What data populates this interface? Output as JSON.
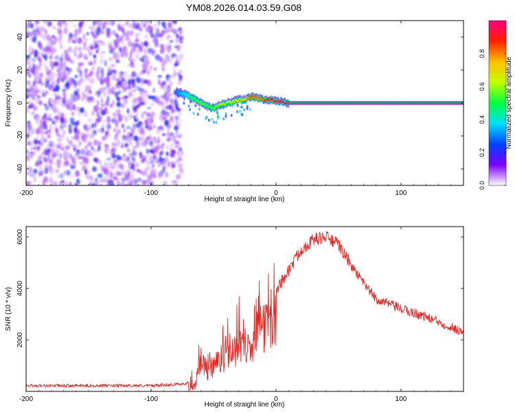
{
  "title": "YM08.2026.014.03.59.G08",
  "chart_data": [
    {
      "type": "heatmap",
      "xlabel": "Height of straight line (km)",
      "ylabel": "Frequency (Hz)",
      "xlim": [
        -200,
        150
      ],
      "ylim": [
        -50,
        50
      ],
      "xticks": [
        -200,
        -100,
        0,
        100
      ],
      "yticks": [
        -40,
        -20,
        0,
        20,
        40
      ],
      "colorbar": {
        "label": "Normalized spectral amplitude",
        "range": [
          0,
          1
        ],
        "ticks": [
          "0.0",
          "0.2",
          "0.4",
          "0.6",
          "0.8"
        ],
        "colormap": [
          "#ffffff",
          "#7a00ff",
          "#0040ff",
          "#00e0ff",
          "#00ff40",
          "#c0ff00",
          "#ffc000",
          "#ff2000",
          "#ff0080"
        ]
      },
      "noise_region": {
        "x_range": [
          -200,
          -75
        ],
        "y_range": [
          -50,
          50
        ],
        "amplitude": 0.25
      },
      "signal_ridge": {
        "x": [
          -80,
          -72,
          -65,
          -60,
          -55,
          -50,
          -45,
          -40,
          -35,
          -30,
          -25,
          -20,
          -15,
          -10,
          -5,
          0,
          10,
          150
        ],
        "y": [
          7,
          5,
          2,
          0,
          -2,
          -3,
          -1,
          0,
          1,
          2,
          2,
          4,
          3,
          2,
          2,
          1,
          0,
          0
        ],
        "amplitude": [
          0.3,
          0.4,
          0.5,
          0.55,
          0.5,
          0.55,
          0.6,
          0.6,
          0.65,
          0.7,
          0.75,
          0.85,
          0.8,
          0.85,
          0.9,
          0.95,
          1.0,
          1.0
        ]
      }
    },
    {
      "type": "line",
      "xlabel": "Height of straight line (km)",
      "ylabel": "SNR (10 * v/v)",
      "xlim": [
        -200,
        150
      ],
      "ylim": [
        0,
        6400
      ],
      "xticks": [
        -200,
        -100,
        0,
        100
      ],
      "yticks": [
        2000,
        4000,
        6000
      ],
      "series": [
        {
          "name": "SNR",
          "color": "#e8231f",
          "x": [
            -200,
            -150,
            -100,
            -80,
            -70,
            -65,
            -62,
            -60,
            -55,
            -50,
            -45,
            -40,
            -35,
            -30,
            -25,
            -20,
            -15,
            -10,
            -5,
            0,
            10,
            20,
            30,
            40,
            50,
            60,
            70,
            80,
            100,
            120,
            140,
            150
          ],
          "y": [
            200,
            200,
            200,
            250,
            300,
            700,
            1500,
            1900,
            1400,
            1700,
            2000,
            2000,
            2400,
            2500,
            2900,
            2600,
            3300,
            3600,
            3800,
            3900,
            4700,
            5500,
            5900,
            6000,
            5700,
            4900,
            4200,
            3600,
            3200,
            2900,
            2500,
            2300
          ]
        }
      ]
    }
  ]
}
